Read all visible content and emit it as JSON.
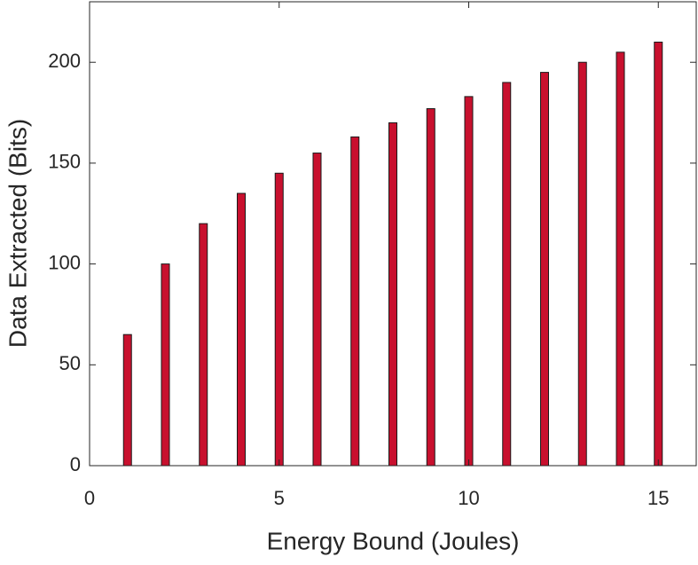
{
  "chart_data": {
    "type": "bar",
    "x": [
      1,
      2,
      3,
      4,
      5,
      6,
      7,
      8,
      9,
      10,
      11,
      12,
      13,
      14,
      15
    ],
    "values": [
      65,
      100,
      120,
      135,
      145,
      155,
      163,
      170,
      177,
      183,
      190,
      195,
      200,
      205,
      210
    ],
    "color": "#c8102e",
    "xlabel": "Energy Bound (Joules)",
    "ylabel": "Data Extracted (Bits)",
    "xlim": [
      0,
      16
    ],
    "xticks": [
      0,
      5,
      10,
      15
    ],
    "ylim": [
      0,
      230
    ],
    "yticks": [
      0,
      50,
      100,
      150,
      200
    ],
    "grid": false
  }
}
